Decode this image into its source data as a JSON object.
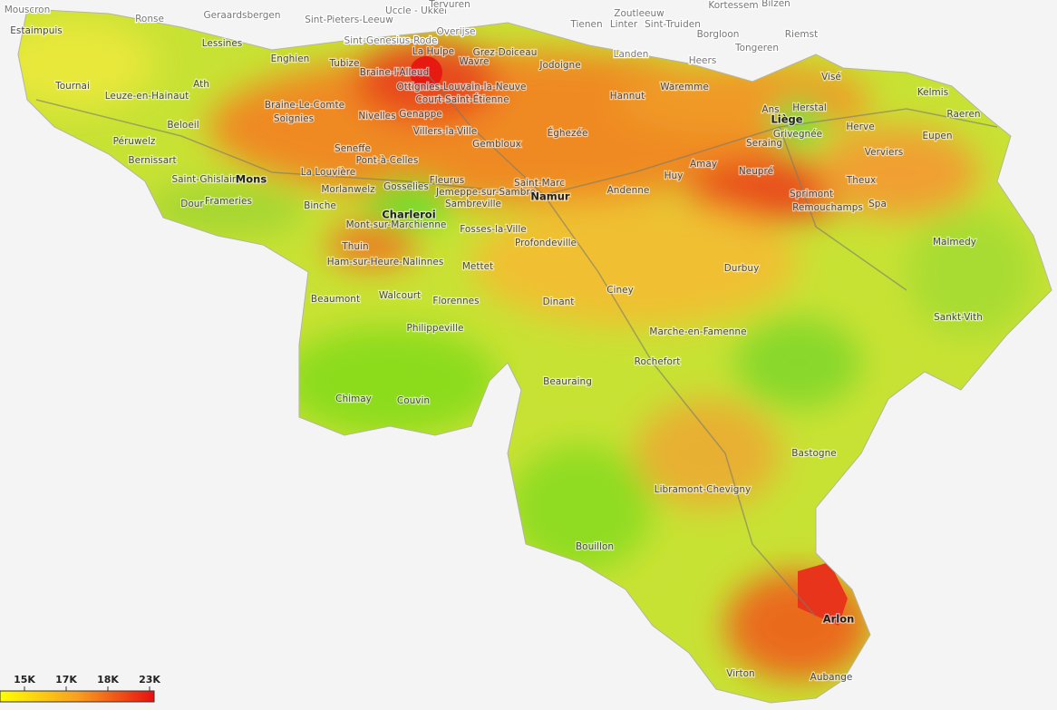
{
  "neighbour_labels": [
    "Mouscron",
    "Ronse",
    "Geraardsbergen",
    "Sint-Pieters-Leeuw",
    "Uccle - Ukkel",
    "Tervuren",
    "Overijse",
    "Sint-Genesius-Rode",
    "Tienen",
    "Zoutleeuw",
    "Linter",
    "Sint-Truiden",
    "Kortessem",
    "Bilzen",
    "Borgloon",
    "Riemst",
    "Landen",
    "Tongeren",
    "Heers"
  ],
  "places": [
    "Estaimpuis",
    "Lessines",
    "Enghien",
    "Tubize",
    "Braine-l'Alleud",
    "La Hulpe",
    "Grez-Doiceau",
    "Wavre",
    "Jodoigne",
    "Tournai",
    "Ath",
    "Leuze-en-Hainaut",
    "Ottignies-Louvain-la-Neuve",
    "Court-Saint-Étienne",
    "Hannut",
    "Waremme",
    "Visé",
    "Kelmis",
    "Herstal",
    "Ans",
    "Liège",
    "Braine-Le-Comte",
    "Soignies",
    "Beloeil",
    "Nivelles",
    "Genappe",
    "Villers-la-Ville",
    "Éghezée",
    "Raeren",
    "Herve",
    "Eupen",
    "Péruwelz",
    "Seneffe",
    "Gembloux",
    "Seraing",
    "Grivegnée",
    "Verviers",
    "Bernissart",
    "Pont-à-Celles",
    "La Louvière",
    "Fleurus",
    "Saint-Marc",
    "Huy",
    "Amay",
    "Neupré",
    "Theux",
    "Saint-Ghislain",
    "Mons",
    "Morlanwelz",
    "Gosselies",
    "Jemeppe-sur-Sambre",
    "Namur",
    "Andenne",
    "Sprimont",
    "Remouchamps",
    "Spa",
    "Dour",
    "Frameries",
    "Binche",
    "Charleroi",
    "Sambreville",
    "Mont-sur-Marchienne",
    "Fosses-la-Ville",
    "Profondeville",
    "Malmedy",
    "Thuin",
    "Ham-sur-Heure-Nalinnes",
    "Mettet",
    "Durbuy",
    "Ciney",
    "Beaumont",
    "Walcourt",
    "Florennes",
    "Dinant",
    "Sankt-Vith",
    "Philippeville",
    "Marche-en-Famenne",
    "Rochefort",
    "Beauraing",
    "Chimay",
    "Couvin",
    "Bastogne",
    "Libramont-Chevigny",
    "Bouillon",
    "Arlon",
    "Virton",
    "Aubange"
  ],
  "legend": {
    "ticks": [
      {
        "value": 15000,
        "label": "15K"
      },
      {
        "value": 17000,
        "label": "17K"
      },
      {
        "value": 18000,
        "label": "18K"
      },
      {
        "value": 23000,
        "label": "23K"
      }
    ]
  }
}
